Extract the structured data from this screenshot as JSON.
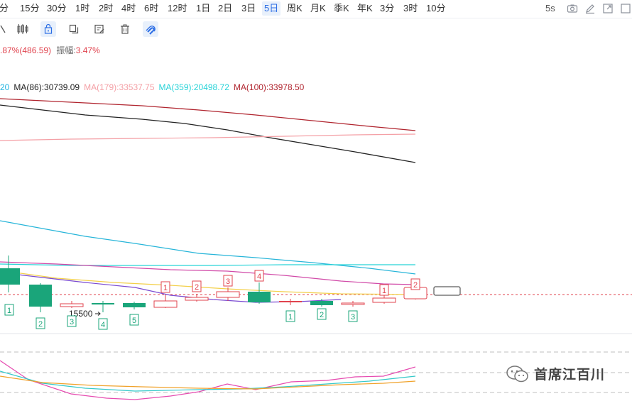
{
  "timeframes": [
    {
      "label": "分",
      "active": false
    },
    {
      "label": "15分",
      "active": false
    },
    {
      "label": "30分",
      "active": false
    },
    {
      "label": "1时",
      "active": false
    },
    {
      "label": "2时",
      "active": false
    },
    {
      "label": "4时",
      "active": false
    },
    {
      "label": "6时",
      "active": false
    },
    {
      "label": "12时",
      "active": false
    },
    {
      "label": "1日",
      "active": false
    },
    {
      "label": "2日",
      "active": false
    },
    {
      "label": "3日",
      "active": false
    },
    {
      "label": "5日",
      "active": true
    },
    {
      "label": "周K",
      "active": false
    },
    {
      "label": "月K",
      "active": false
    },
    {
      "label": "季K",
      "active": false
    },
    {
      "label": "年K",
      "active": false
    },
    {
      "label": "3分",
      "active": false
    },
    {
      "label": "3时",
      "active": false
    },
    {
      "label": "10分",
      "active": false
    }
  ],
  "refresh": "5s",
  "tools": [
    "line-tool-icon",
    "candlestick-icon",
    "lock-icon",
    "copy-icon",
    "edit-icon",
    "delete-icon",
    "magnet-icon"
  ],
  "price_info": {
    "change": ".87%(486.59)",
    "amplitude_label": "振幅:",
    "amplitude_value": "3.47%"
  },
  "ma_legend": [
    {
      "text": "20",
      "color": "#1fb3e0"
    },
    {
      "text": "MA(86):30739.09",
      "color": "#222222"
    },
    {
      "text": "MA(179):33537.75",
      "color": "#f4a0a6"
    },
    {
      "text": "MA(359):20498.72",
      "color": "#28d3d8"
    },
    {
      "text": "MA(100):33978.50",
      "color": "#b0242e"
    }
  ],
  "annotations": {
    "price_label": "15500"
  },
  "watermark": "首席江百川",
  "colors": {
    "up": "#e0434e",
    "down": "#1aa57a",
    "accent": "#2b6de5"
  },
  "chart_data": {
    "type": "candlestick",
    "series": [
      {
        "name": "MA(86)",
        "color": "#222222"
      },
      {
        "name": "MA(179)",
        "color": "#f4a0a6"
      },
      {
        "name": "MA(359)",
        "color": "#28d3d8"
      },
      {
        "name": "MA(100)",
        "color": "#b0242e"
      }
    ],
    "sequence_marks": [
      {
        "label": "1",
        "color": "down"
      },
      {
        "label": "2",
        "color": "down"
      },
      {
        "label": "3",
        "color": "down"
      },
      {
        "label": "4",
        "color": "down"
      },
      {
        "label": "5",
        "color": "down"
      },
      {
        "label": "1",
        "color": "up"
      },
      {
        "label": "2",
        "color": "up"
      },
      {
        "label": "3",
        "color": "up"
      },
      {
        "label": "4",
        "color": "up"
      },
      {
        "label": "1",
        "color": "down"
      },
      {
        "label": "2",
        "color": "down"
      },
      {
        "label": "3",
        "color": "down"
      },
      {
        "label": "1",
        "color": "up"
      },
      {
        "label": "2",
        "color": "up"
      }
    ]
  }
}
